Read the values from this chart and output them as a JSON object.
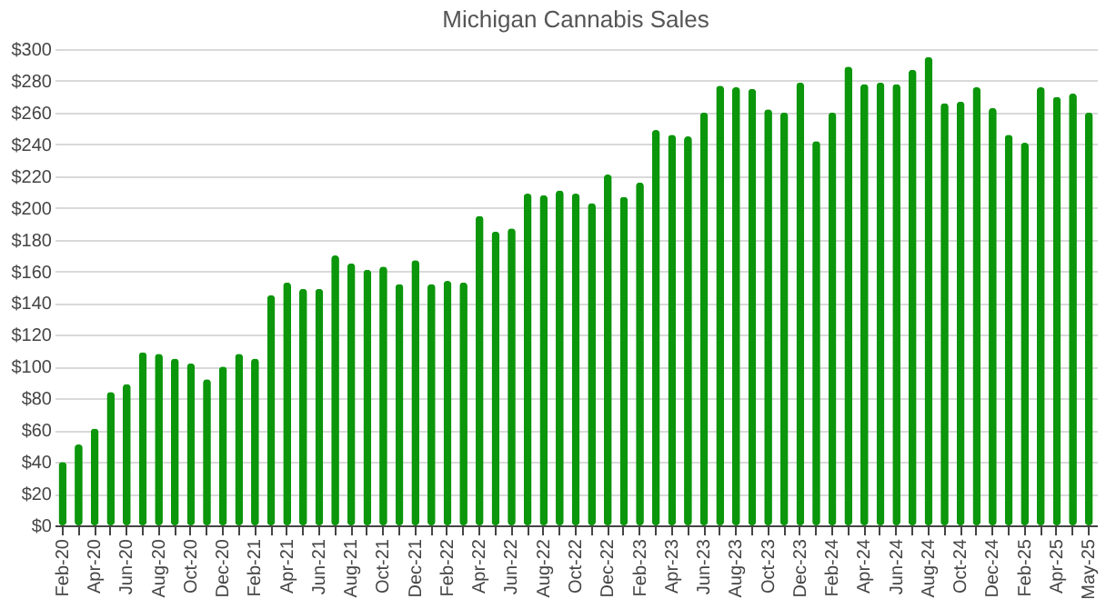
{
  "chart_data": {
    "type": "bar",
    "title": "Michigan Cannabis Sales",
    "categories": [
      "Feb-20",
      null,
      "Apr-20",
      null,
      "Jun-20",
      null,
      "Aug-20",
      null,
      "Oct-20",
      null,
      "Dec-20",
      null,
      "Feb-21",
      null,
      "Apr-21",
      null,
      "Jun-21",
      null,
      "Aug-21",
      null,
      "Oct-21",
      null,
      "Dec-21",
      null,
      "Feb-22",
      null,
      "Apr-22",
      null,
      "Jun-22",
      null,
      "Aug-22",
      null,
      "Oct-22",
      null,
      "Dec-22",
      null,
      "Feb-23",
      null,
      "Apr-23",
      null,
      "Jun-23",
      null,
      "Aug-23",
      null,
      "Oct-23",
      null,
      "Dec-23",
      null,
      "Feb-24",
      null,
      "Apr-24",
      null,
      "Jun-24",
      null,
      "Aug-24",
      null,
      "Oct-24",
      null,
      "Dec-24",
      null,
      "Feb-25",
      null,
      "Apr-25",
      null,
      "May-25"
    ],
    "values": [
      40,
      51,
      61,
      84,
      89,
      109,
      108,
      105,
      102,
      92,
      100,
      108,
      105,
      145,
      153,
      149,
      149,
      170,
      165,
      161,
      163,
      152,
      167,
      152,
      154,
      153,
      195,
      185,
      187,
      209,
      208,
      211,
      209,
      203,
      221,
      207,
      216,
      249,
      246,
      245,
      260,
      277,
      276,
      275,
      262,
      260,
      279,
      242,
      260,
      289,
      278,
      279,
      278,
      287,
      295,
      266,
      267,
      276,
      263,
      246,
      241,
      276,
      270,
      272,
      260
    ],
    "color": "#0b960b",
    "ylim": [
      0,
      300
    ],
    "yticks": [
      {
        "value": 0,
        "label": "$0"
      },
      {
        "value": 20,
        "label": "$20"
      },
      {
        "value": 40,
        "label": "$40"
      },
      {
        "value": 60,
        "label": "$60"
      },
      {
        "value": 80,
        "label": "$80"
      },
      {
        "value": 100,
        "label": "$100"
      },
      {
        "value": 120,
        "label": "$120"
      },
      {
        "value": 140,
        "label": "$140"
      },
      {
        "value": 160,
        "label": "$160"
      },
      {
        "value": 180,
        "label": "$180"
      },
      {
        "value": 200,
        "label": "$200"
      },
      {
        "value": 220,
        "label": "$220"
      },
      {
        "value": 240,
        "label": "$240"
      },
      {
        "value": 260,
        "label": "$260"
      },
      {
        "value": 280,
        "label": "$280"
      },
      {
        "value": 300,
        "label": "$300"
      }
    ],
    "grid": "y"
  }
}
